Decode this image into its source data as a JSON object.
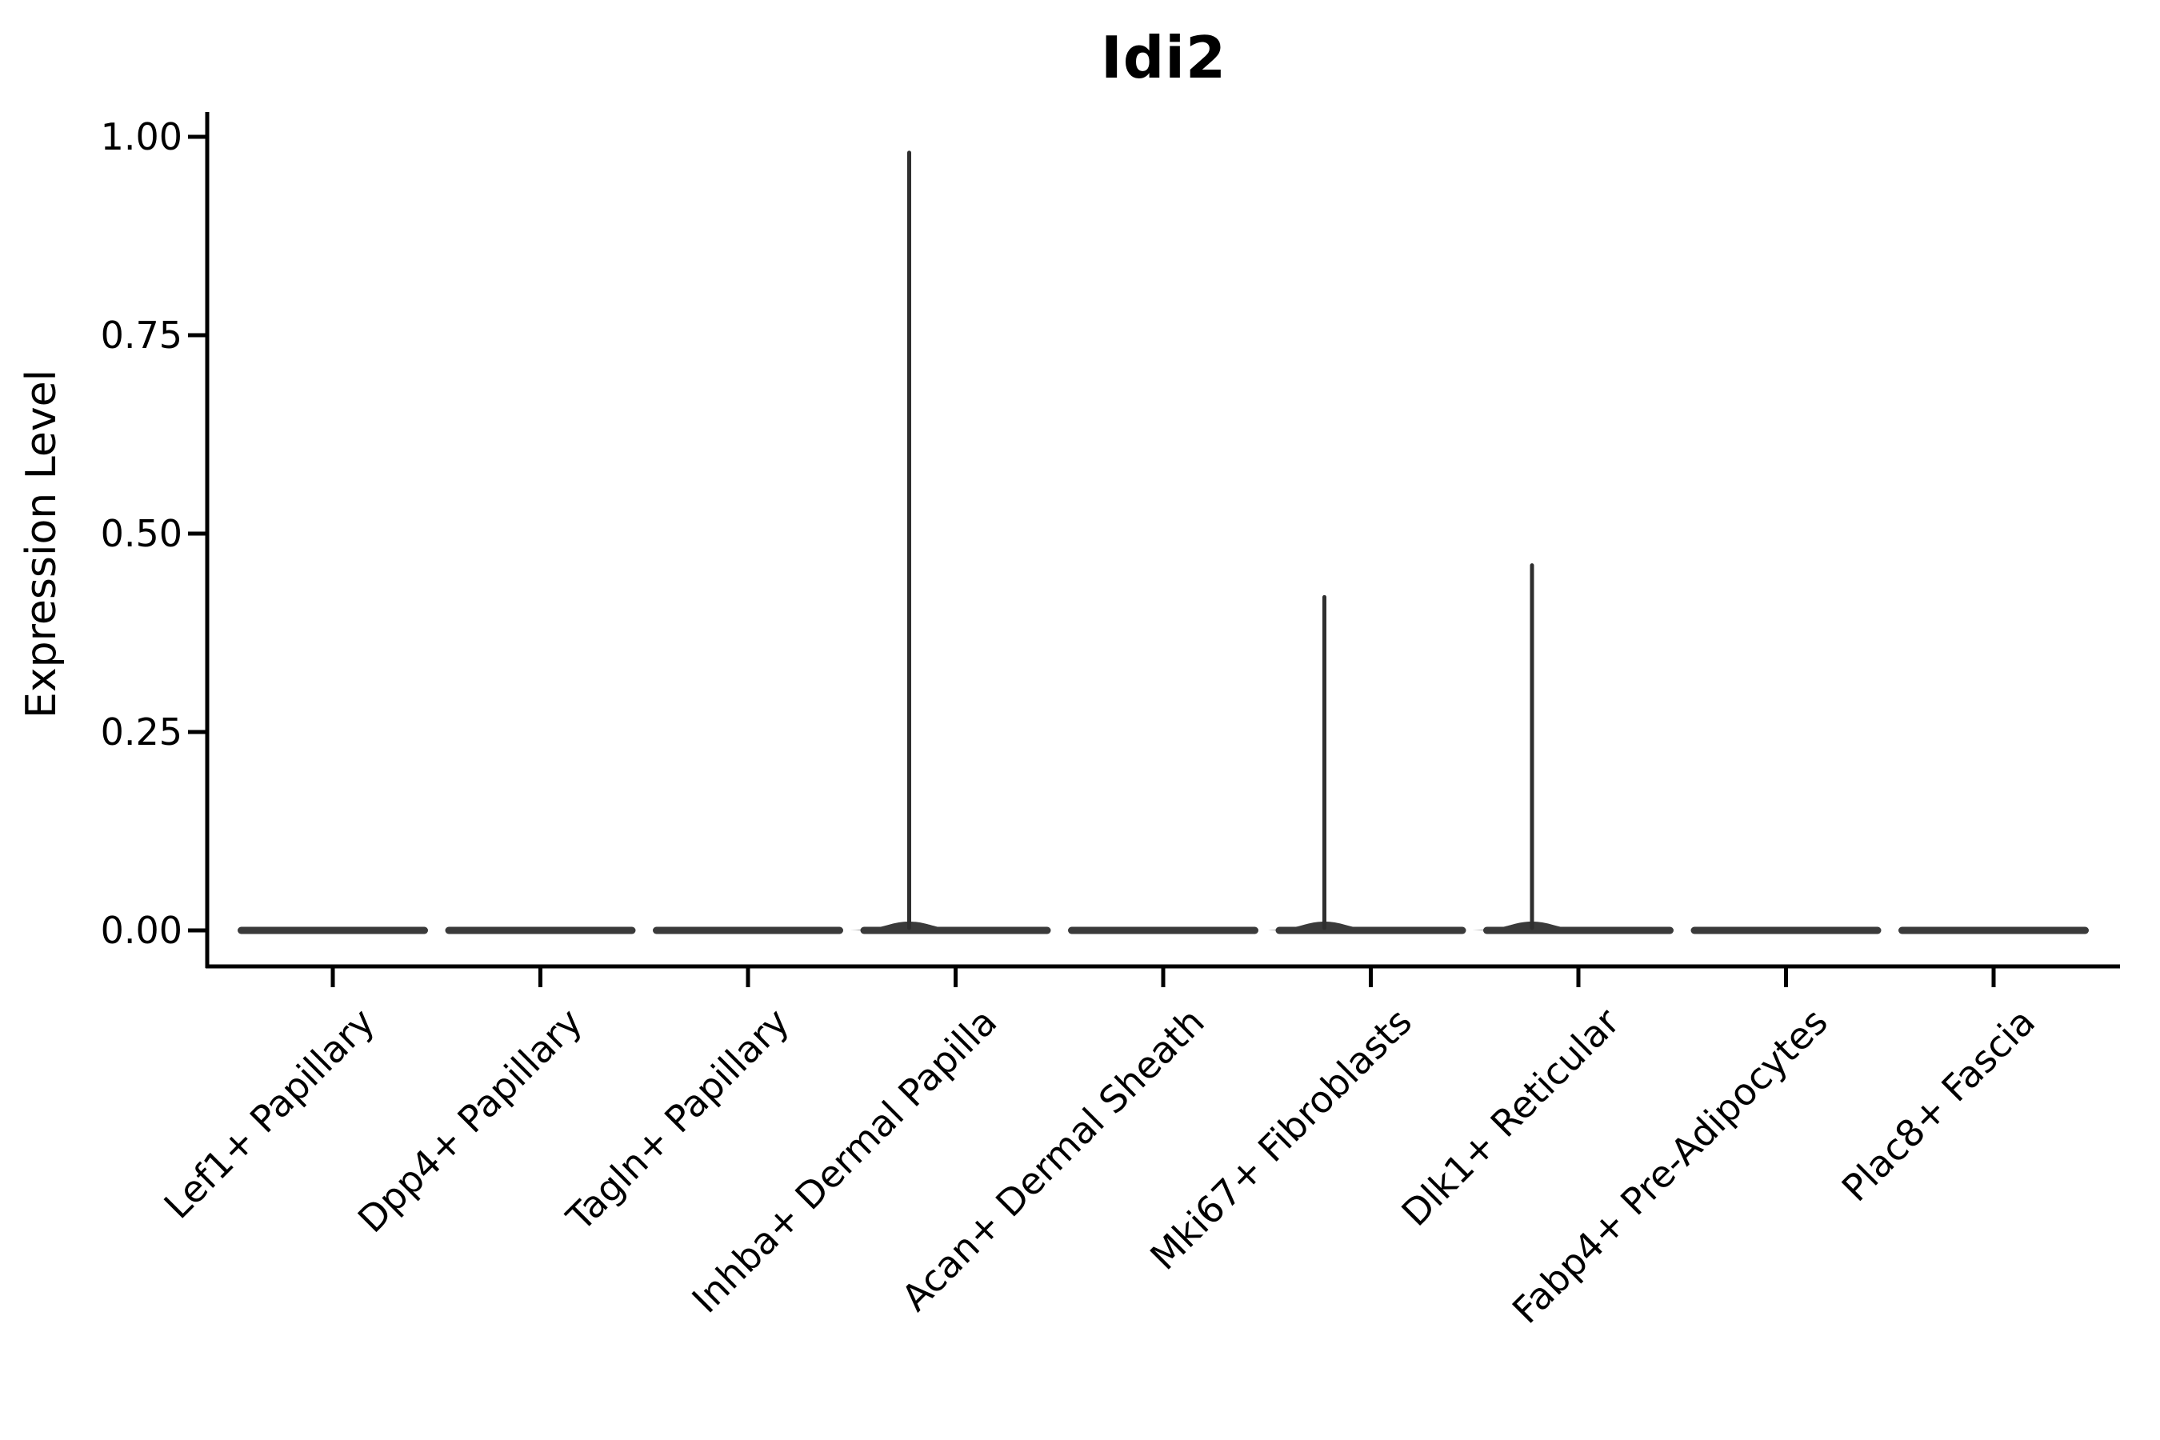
{
  "title": "Idi2",
  "y_axis": {
    "label": "Expression Level",
    "tick_labels": [
      "1.00",
      "0.75",
      "0.50",
      "0.25",
      "0.00"
    ],
    "tick_values": [
      1.0,
      0.75,
      0.5,
      0.25,
      0.0
    ]
  },
  "chart_data": {
    "type": "violin",
    "title": "Idi2",
    "xlabel": "",
    "ylabel": "Expression Level",
    "ylim": [
      0,
      1
    ],
    "yticks": [
      0.0,
      0.25,
      0.5,
      0.75,
      1.0
    ],
    "ytick_labels": [
      "0.00",
      "0.25",
      "0.50",
      "0.75",
      "1.00"
    ],
    "grid": false,
    "legend": "none",
    "categories": [
      "Lef1+ Papillary",
      "Dpp4+ Papillary",
      "Tagln+ Papillary",
      "Inhba+ Dermal Papilla",
      "Acan+ Dermal Sheath",
      "Mki67+ Fibroblasts",
      "Dlk1+ Reticular",
      "Fabp4+ Pre-Adipocytes",
      "Plac8+ Fascia"
    ],
    "series": [
      {
        "name": "Lef1+ Papillary",
        "bulk_expression": 0.0,
        "max_expression": 0.0
      },
      {
        "name": "Dpp4+ Papillary",
        "bulk_expression": 0.0,
        "max_expression": 0.0
      },
      {
        "name": "Tagln+ Papillary",
        "bulk_expression": 0.0,
        "max_expression": 0.0
      },
      {
        "name": "Inhba+ Dermal Papilla",
        "bulk_expression": 0.0,
        "max_expression": 0.98
      },
      {
        "name": "Acan+ Dermal Sheath",
        "bulk_expression": 0.0,
        "max_expression": 0.0
      },
      {
        "name": "Mki67+ Fibroblasts",
        "bulk_expression": 0.0,
        "max_expression": 0.42
      },
      {
        "name": "Dlk1+ Reticular",
        "bulk_expression": 0.0,
        "max_expression": 0.46
      },
      {
        "name": "Fabp4+ Pre-Adipocytes",
        "bulk_expression": 0.0,
        "max_expression": 0.0
      },
      {
        "name": "Plac8+ Fascia",
        "bulk_expression": 0.0,
        "max_expression": 0.0
      }
    ],
    "annotation": "Violins are flat at 0 for all clusters; thin density spikes reach the max expression values shown"
  },
  "colors": {
    "background": "#ffffff",
    "axis": "#000000",
    "text": "#000000",
    "violin_fill": "#3a3a3a",
    "spike_stroke": "#2f2f2f"
  }
}
